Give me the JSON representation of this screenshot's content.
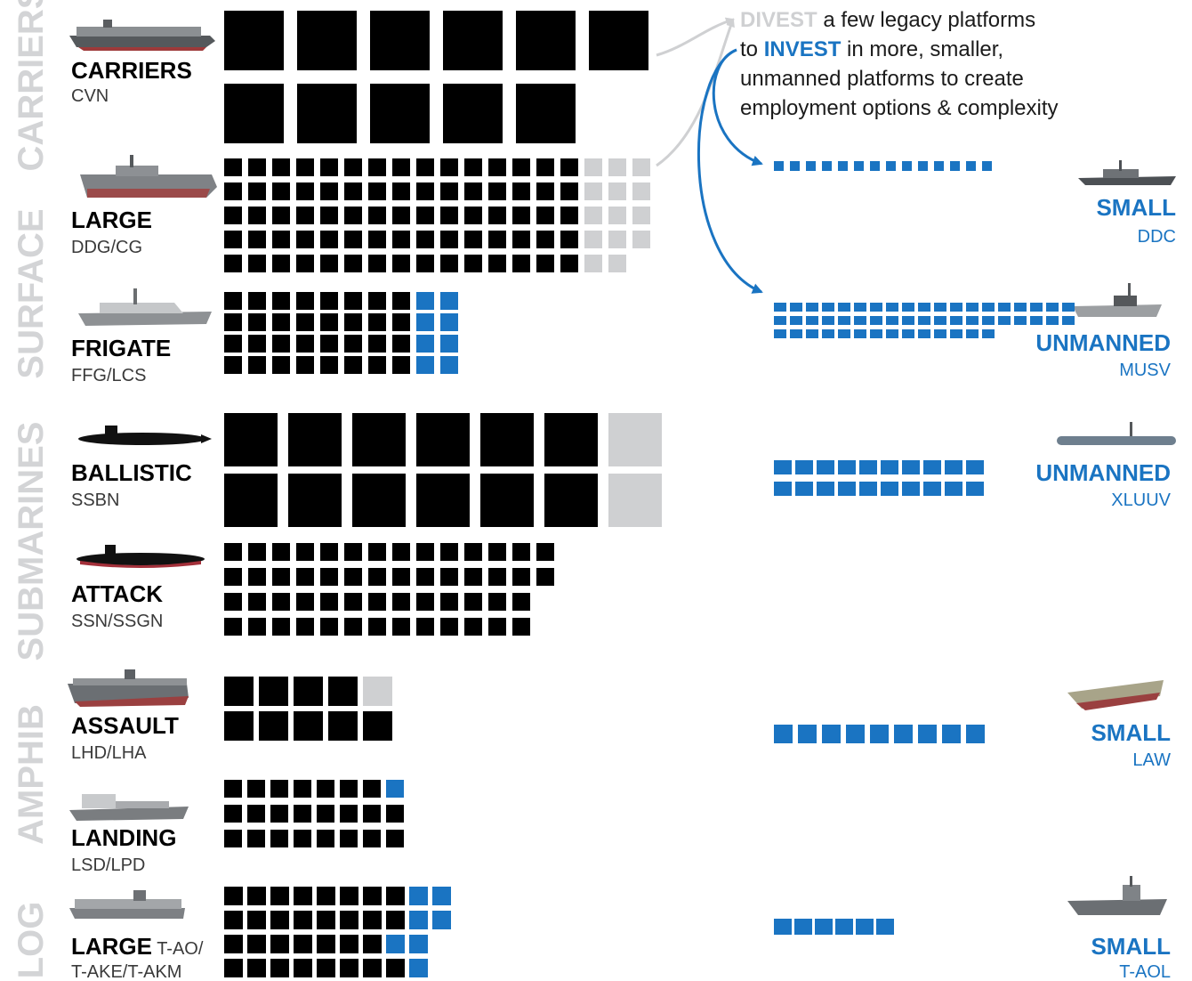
{
  "colors": {
    "existing": "#000000",
    "divest": "#cfd0d2",
    "invest": "#1a74c2",
    "category_text": "#d3d4d6",
    "ship_label": "#000000",
    "ship_code": "#3a3a3a",
    "new_label": "#1a74c2"
  },
  "annotation": {
    "divest_word": "DIVEST",
    "line1_rest": " a few legacy platforms",
    "line2_prefix": "to ",
    "invest_word": "INVEST",
    "line2_rest": " in more, smaller,",
    "line3": "unmanned platforms to create",
    "line4": "employment options & complexity"
  },
  "categories": [
    "CARRIERS",
    "SURFACE",
    "SUBMARINES",
    "AMPHIB",
    "LOG"
  ],
  "chart_data": {
    "type": "waffle",
    "legend": [
      {
        "status": "existing",
        "color": "#000000"
      },
      {
        "status": "divest",
        "color": "#cfd0d2"
      },
      {
        "status": "invest",
        "color": "#1a74c2"
      }
    ],
    "current_fleet": [
      {
        "category": "CARRIERS",
        "label": "CARRIERS",
        "code": "CVN",
        "ship_icon": "aircraft-carrier-icon",
        "existing": 10,
        "divest": 0,
        "invest": 0
      },
      {
        "category": "SURFACE",
        "label": "LARGE",
        "code": "DDG/CG",
        "ship_icon": "destroyer-icon",
        "existing": 80,
        "divest": 14,
        "invest": 0
      },
      {
        "category": "SURFACE",
        "label": "FRIGATE",
        "code": "FFG/LCS",
        "ship_icon": "frigate-icon",
        "existing": 32,
        "divest": 0,
        "invest": 8
      },
      {
        "category": "SUBMARINES",
        "label": "BALLISTIC",
        "code": "SSBN",
        "ship_icon": "ballistic-submarine-icon",
        "existing": 12,
        "divest": 2,
        "invest": 0
      },
      {
        "category": "SUBMARINES",
        "label": "ATTACK",
        "code": "SSN/SSGN",
        "ship_icon": "attack-submarine-icon",
        "existing": 54,
        "divest": 0,
        "invest": 0
      },
      {
        "category": "AMPHIB",
        "label": "ASSAULT",
        "code": "LHD/LHA",
        "ship_icon": "amphibious-assault-ship-icon",
        "existing": 9,
        "divest": 1,
        "invest": 0
      },
      {
        "category": "AMPHIB",
        "label": "LANDING",
        "code": "LSD/LPD",
        "ship_icon": "landing-dock-ship-icon",
        "existing": 23,
        "divest": 0,
        "invest": 1
      },
      {
        "category": "LOG",
        "label": "LARGE",
        "label_suffix": " T-AO/",
        "code": "T-AKE/T-AKM",
        "ship_icon": "supply-ship-icon",
        "existing": 32,
        "divest": 0,
        "invest": 7
      }
    ],
    "new_platforms": [
      {
        "label": "SMALL",
        "code": "DDC",
        "ship_icon": "small-combatant-icon",
        "count": 14
      },
      {
        "label": "UNMANNED",
        "code": "MUSV",
        "ship_icon": "medium-usv-icon",
        "count": 52
      },
      {
        "label": "UNMANNED",
        "code": "XLUUV",
        "ship_icon": "xluuv-icon",
        "count": 20
      },
      {
        "label": "SMALL",
        "code": "LAW",
        "ship_icon": "light-amphibious-warship-icon",
        "count": 9
      },
      {
        "label": "SMALL",
        "code": "T-AOL",
        "ship_icon": "small-oiler-icon",
        "count": 6
      }
    ]
  }
}
